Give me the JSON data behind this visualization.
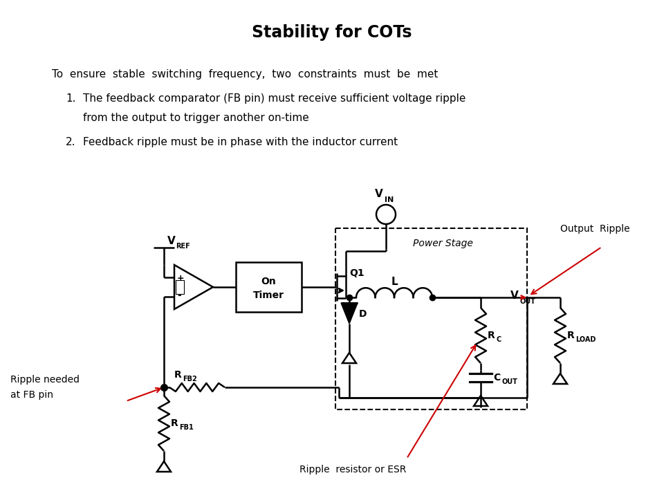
{
  "title": "Stability for COTs",
  "bg_color": "#ffffff",
  "text_color": "#000000",
  "line_color": "#000000",
  "red_color": "#cc0000",
  "intro_text": "To  ensure  stable  switching  frequency,  two  constraints  must  be  met",
  "bullet1_line1": "The feedback comparator (FB pin) must receive sufficient voltage ripple",
  "bullet1_line2": "from the output to trigger another on-time",
  "bullet2": "Feedback ripple must be in phase with the inductor current",
  "label_output_ripple": "Output  Ripple",
  "label_ripple_needed_1": "Ripple needed",
  "label_ripple_needed_2": "at FB pin",
  "label_ripple_resistor": "Ripple  resistor or ESR",
  "label_power_stage": "Power Stage",
  "label_on_timer_1": "On",
  "label_on_timer_2": "Timer"
}
